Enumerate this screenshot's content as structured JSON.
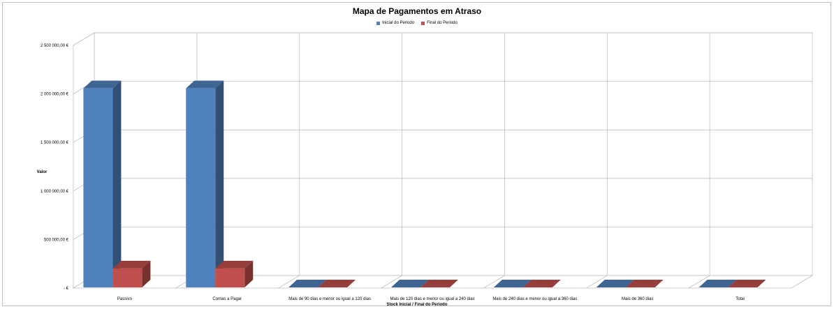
{
  "chart_data": {
    "type": "bar",
    "title": "Mapa de Pagamentos em Atraso",
    "xlabel": "Stock Inicial / Final do Periodo",
    "ylabel": "Valor",
    "categories": [
      "Passivo",
      "Contas a Pagar",
      "Mais de 90 dias e menor ou igual a 120 dias",
      "Mais de 120 dias e menor ou igual a 240 dias",
      "Mais de 240 dias e menor ou igual a 360 dias",
      "Mais de 360 dias",
      "Total"
    ],
    "series": [
      {
        "name": "Inicial do Periodo",
        "color": "#4f81bd",
        "values": [
          2050000,
          2050000,
          0,
          0,
          0,
          0,
          0
        ]
      },
      {
        "name": "Final do Periodo",
        "color": "#c0504d",
        "values": [
          195000,
          195000,
          0,
          0,
          0,
          0,
          0
        ]
      }
    ],
    "ylim": [
      0,
      2500000
    ],
    "yticks": [
      0,
      500000,
      1000000,
      1500000,
      2000000,
      2500000
    ],
    "ytick_labels": [
      "- €",
      "500 000,00 €",
      "1 000 000,00 €",
      "1 500 000,00 €",
      "2 000 000,00 €",
      "2 500 000,00 €"
    ],
    "grid": true,
    "legend_position": "top-center",
    "style": "3d-clustered-column"
  }
}
